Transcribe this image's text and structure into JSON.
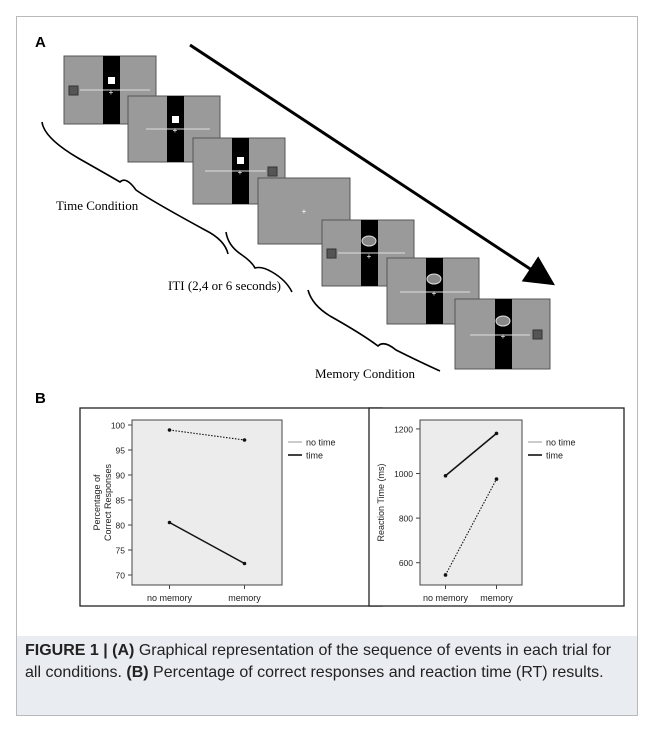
{
  "panel_a": {
    "label": "A",
    "time_condition_label": "Time Condition",
    "iti_label": "ITI (2,4 or 6 seconds)",
    "memory_condition_label": "Memory Condition"
  },
  "panel_b": {
    "label": "B"
  },
  "chart_data": [
    {
      "type": "line",
      "ylabel": "Percentage of\nCorrect Responses",
      "xlabel": "",
      "categories": [
        "no memory",
        "memory"
      ],
      "ylim": [
        68,
        101
      ],
      "yticks": [
        70,
        75,
        80,
        85,
        90,
        95,
        100
      ],
      "legend": {
        "placement": "right",
        "entries": [
          "no time",
          "time"
        ]
      },
      "series": [
        {
          "name": "no time",
          "style": "dotted",
          "values": [
            99,
            97
          ]
        },
        {
          "name": "time",
          "style": "solid",
          "values": [
            80.5,
            72.3
          ]
        }
      ]
    },
    {
      "type": "line",
      "ylabel": "Reaction Time (ms)",
      "xlabel": "",
      "categories": [
        "no memory",
        "memory"
      ],
      "ylim": [
        500,
        1240
      ],
      "yticks": [
        600,
        800,
        1000,
        1200
      ],
      "legend": {
        "placement": "right",
        "entries": [
          "no time",
          "time"
        ]
      },
      "series": [
        {
          "name": "no time",
          "style": "dotted",
          "values": [
            545,
            975
          ]
        },
        {
          "name": "time",
          "style": "solid",
          "values": [
            990,
            1180
          ]
        }
      ]
    }
  ],
  "caption": {
    "figure_label": "FIGURE 1 | ",
    "a_marker": "(A)",
    "a_text": " Graphical representation of the sequence of events in each trial for all conditions. ",
    "b_marker": "(B)",
    "b_text": " Percentage of correct responses and reaction time (RT) results."
  },
  "colors": {
    "screen_gray": "#9a9a9a",
    "chart_bg": "#ececec",
    "caption_bg": "#e9ecf1"
  }
}
